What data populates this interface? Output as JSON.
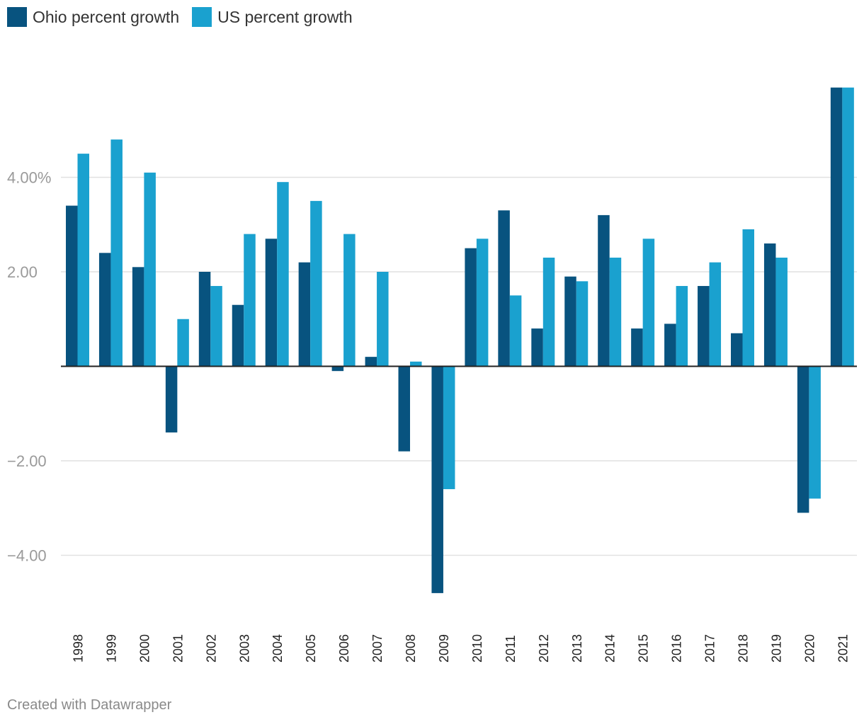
{
  "chart_data": {
    "type": "bar",
    "categories": [
      "1998",
      "1999",
      "2000",
      "2001",
      "2002",
      "2003",
      "2004",
      "2005",
      "2006",
      "2007",
      "2008",
      "2009",
      "2010",
      "2011",
      "2012",
      "2013",
      "2014",
      "2015",
      "2016",
      "2017",
      "2018",
      "2019",
      "2020",
      "2021"
    ],
    "series": [
      {
        "name": "Ohio percent growth",
        "color": "#08537f",
        "values": [
          3.4,
          2.4,
          2.1,
          -1.4,
          2.0,
          1.3,
          2.7,
          2.2,
          -0.1,
          0.2,
          -1.8,
          -4.8,
          2.5,
          3.3,
          0.8,
          1.9,
          3.2,
          0.8,
          0.9,
          1.7,
          0.7,
          2.6,
          -3.1,
          5.9
        ]
      },
      {
        "name": "US percent growth",
        "color": "#1aa1cf",
        "values": [
          4.5,
          4.8,
          4.1,
          1.0,
          1.7,
          2.8,
          3.9,
          3.5,
          2.8,
          2.0,
          0.1,
          -2.6,
          2.7,
          1.5,
          2.3,
          1.8,
          2.3,
          2.7,
          1.7,
          2.2,
          2.9,
          2.3,
          -2.8,
          5.9
        ]
      }
    ],
    "y_ticks": [
      {
        "value": 4,
        "label": "4.00%"
      },
      {
        "value": 2,
        "label": "2.00"
      },
      {
        "value": -2,
        "label": "−2.00"
      },
      {
        "value": -4,
        "label": "−4.00"
      }
    ],
    "ylim": [
      -5,
      6
    ],
    "title": "",
    "xlabel": "",
    "ylabel": "",
    "grid": true,
    "legend": "top-left"
  },
  "footer": {
    "credit": "Created with Datawrapper"
  }
}
